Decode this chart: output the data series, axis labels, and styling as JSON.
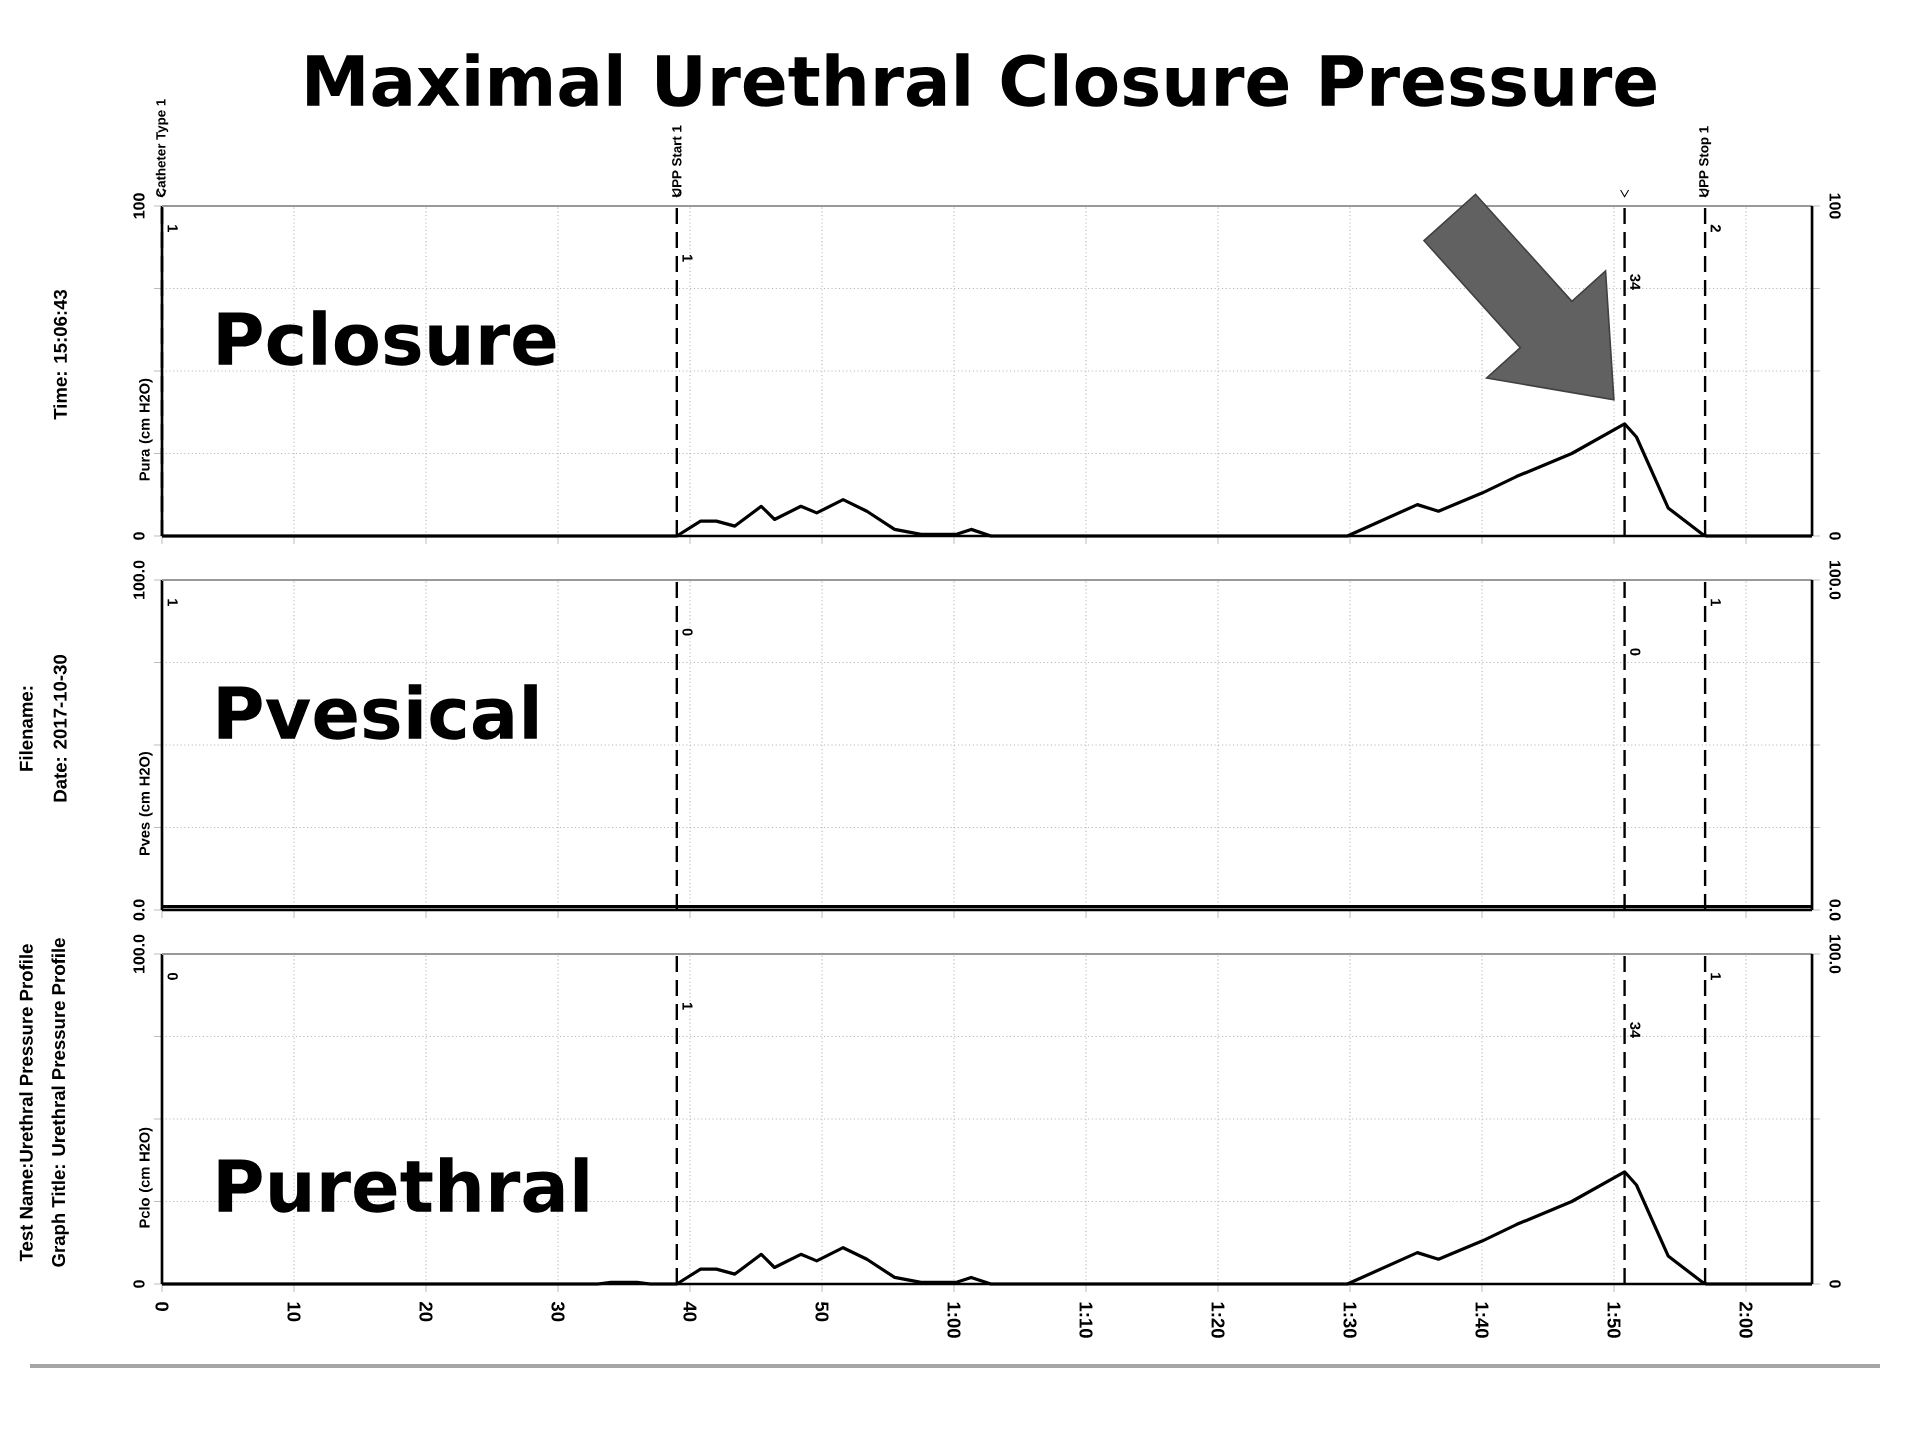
{
  "chart_data": [
    {
      "type": "line",
      "title": "Maximal Urethral Closure Pressure",
      "ylabel": "Pura (cm H2O)",
      "annotations": [
        "Pclosure",
        "Time: 15:06:43",
        "1",
        "1",
        "34",
        "2"
      ],
      "series": [
        {
          "color": "#000000",
          "x": [
            0,
            10,
            20,
            30,
            38,
            39,
            40.8,
            42,
            43.4,
            45.4,
            46.4,
            48.4,
            49.6,
            51.6,
            53.4,
            55.5,
            57.5,
            60.2,
            61.3,
            62.8,
            89.8,
            95.1,
            96.7,
            100,
            102.6,
            106.8,
            110.8,
            111.7,
            114.1,
            116.7,
            117,
            125
          ],
          "values": [
            0,
            0,
            0,
            0,
            0,
            0,
            4.5,
            4.5,
            3,
            9,
            5,
            9,
            7,
            11,
            7.5,
            2,
            0.5,
            0.5,
            2,
            0,
            0,
            9.5,
            7.5,
            13,
            18,
            25,
            34,
            30,
            8.5,
            0.5,
            0,
            0
          ]
        }
      ],
      "xlim": [
        0,
        125
      ],
      "xticks": [
        0,
        10,
        20,
        30,
        40,
        50,
        60,
        70,
        80,
        90,
        100,
        110,
        120
      ],
      "ylim": [
        0,
        100
      ],
      "yticks": [
        0,
        {
          "value": 25,
          "label": null
        },
        {
          "value": 50,
          "label": null
        },
        {
          "value": 75,
          "label": null
        },
        100
      ],
      "y2lim": [
        0,
        100
      ],
      "y2ticks": [
        0,
        {
          "value": 25,
          "label": null
        },
        {
          "value": 50,
          "label": null
        },
        {
          "value": 75,
          "label": null
        },
        100
      ],
      "ref_lines": [
        {
          "axis": "x",
          "value": 0,
          "label": "Catheter Type 1",
          "line_style": "dashed"
        },
        {
          "axis": "x",
          "value": 39,
          "label": "UPP Start 1",
          "line_style": "dashed"
        },
        {
          "axis": "x",
          "value": 110.8,
          "label": null,
          "line_style": "dashed"
        },
        {
          "axis": "x",
          "value": 116.9,
          "label": "UPP Stop 1",
          "line_style": "dashed"
        }
      ],
      "grid": true,
      "tick_labels": "y",
      "line_style": "solid",
      "marker": "none"
    },
    {
      "type": "line",
      "ylabel": "Pves (cm H2O)",
      "annotations": [
        "Pvesical",
        "Filename:",
        "Date: 2017-10-30",
        "1",
        "0",
        "0",
        "1"
      ],
      "series": [
        {
          "color": "#000000",
          "x": [
            0,
            30,
            60,
            90,
            125
          ],
          "values": [
            1,
            1,
            1,
            1,
            1
          ]
        }
      ],
      "xlim": [
        0,
        125
      ],
      "xticks": [
        0,
        10,
        20,
        30,
        40,
        50,
        60,
        70,
        80,
        90,
        100,
        110,
        120
      ],
      "ylim": [
        0,
        100
      ],
      "yticks": [
        {
          "value": 0,
          "label": "0.0"
        },
        {
          "value": 25,
          "label": null
        },
        {
          "value": 50,
          "label": null
        },
        {
          "value": 75,
          "label": null
        },
        {
          "value": 100,
          "label": "100.0"
        }
      ],
      "y2lim": [
        0,
        100
      ],
      "y2ticks": [
        {
          "value": 0,
          "label": "0.0"
        },
        {
          "value": 25,
          "label": null
        },
        {
          "value": 50,
          "label": null
        },
        {
          "value": 75,
          "label": null
        },
        {
          "value": 100,
          "label": "100.0"
        }
      ],
      "ref_lines": [
        {
          "axis": "x",
          "value": 39,
          "line_style": "dashed"
        },
        {
          "axis": "x",
          "value": 110.8,
          "line_style": "dashed"
        },
        {
          "axis": "x",
          "value": 116.9,
          "line_style": "dashed"
        }
      ],
      "grid": true,
      "tick_labels": "y",
      "line_style": "solid",
      "marker": "none"
    },
    {
      "type": "line",
      "ylabel": "Pclo (cm H2O)",
      "annotations": [
        "Purethral",
        "Test Name:Urethral Pressure Profile",
        "Graph Title: Urethral Pressure Profile",
        "0",
        "1",
        "34",
        "1"
      ],
      "series": [
        {
          "color": "#000000",
          "x": [
            0,
            10,
            20,
            30,
            33,
            34,
            36,
            37,
            39,
            40.8,
            42,
            43.4,
            45.4,
            46.4,
            48.4,
            49.6,
            51.6,
            53.4,
            55.5,
            57.5,
            60.2,
            61.3,
            62.8,
            89.8,
            95.1,
            96.7,
            100,
            102.6,
            106.8,
            110.8,
            111.7,
            114.1,
            116.7,
            117,
            125
          ],
          "values": [
            0,
            0,
            0,
            0,
            0,
            0.5,
            0.5,
            0,
            0,
            4.5,
            4.5,
            3,
            9,
            5,
            9,
            7,
            11,
            7.5,
            2,
            0.5,
            0.5,
            2,
            0,
            0,
            9.5,
            7.5,
            13,
            18,
            25,
            34,
            30,
            8.5,
            0.5,
            0,
            0
          ]
        }
      ],
      "xlim": [
        0,
        125
      ],
      "xticks": [
        0,
        10,
        20,
        30,
        40,
        50,
        {
          "value": 60,
          "label": "1:00"
        },
        {
          "value": 70,
          "label": "1:10"
        },
        {
          "value": 80,
          "label": "1:20"
        },
        {
          "value": 90,
          "label": "1:30"
        },
        {
          "value": 100,
          "label": "1:40"
        },
        {
          "value": 110,
          "label": "1:50"
        },
        {
          "value": 120,
          "label": "2:00"
        }
      ],
      "ylim": [
        0,
        100
      ],
      "yticks": [
        0,
        {
          "value": 25,
          "label": null
        },
        {
          "value": 50,
          "label": null
        },
        {
          "value": 75,
          "label": null
        },
        {
          "value": 100,
          "label": "100.0"
        }
      ],
      "y2lim": [
        0,
        100
      ],
      "y2ticks": [
        0,
        {
          "value": 25,
          "label": null
        },
        {
          "value": 50,
          "label": null
        },
        {
          "value": 75,
          "label": null
        },
        {
          "value": 100,
          "label": "100.0"
        }
      ],
      "ref_lines": [
        {
          "axis": "x",
          "value": 39,
          "line_style": "dashed"
        },
        {
          "axis": "x",
          "value": 110.8,
          "line_style": "dashed"
        },
        {
          "axis": "x",
          "value": 116.9,
          "line_style": "dashed"
        }
      ],
      "grid": true,
      "line_style": "solid",
      "marker": "none"
    }
  ]
}
